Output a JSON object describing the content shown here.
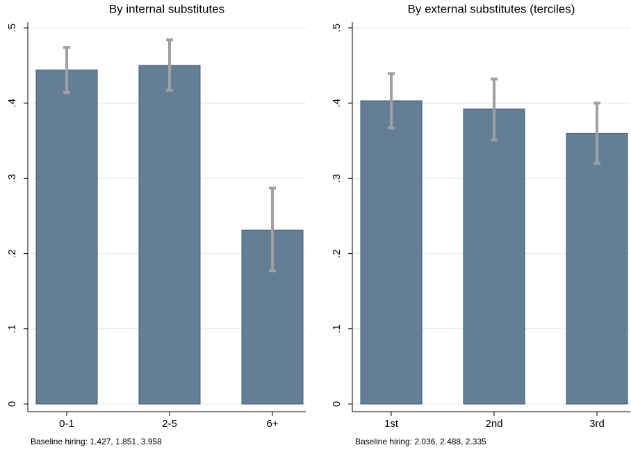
{
  "chart_data": [
    {
      "type": "bar",
      "title": "By internal substitutes",
      "categories": [
        "0-1",
        "2-5",
        "6+"
      ],
      "values": [
        0.444,
        0.45,
        0.231
      ],
      "ci_low": [
        0.414,
        0.417,
        0.177
      ],
      "ci_high": [
        0.474,
        0.484,
        0.287
      ],
      "color": "#647f95",
      "error_color": "#a0a0a0",
      "ylim": [
        0,
        0.5
      ],
      "yticks": [
        0,
        {
          "value": 0.1,
          "label": ".1"
        },
        {
          "value": 0.2,
          "label": ".2"
        },
        {
          "value": 0.3,
          "label": ".3"
        },
        {
          "value": 0.4,
          "label": ".4"
        },
        {
          "value": 0.5,
          "label": ".5"
        }
      ],
      "grid": true,
      "note": "Baseline hiring: 1.427, 1.851, 3.958"
    },
    {
      "type": "bar",
      "title": "By external substitutes (terciles)",
      "categories": [
        "1st",
        "2nd",
        "3rd"
      ],
      "values": [
        0.403,
        0.392,
        0.36
      ],
      "ci_low": [
        0.367,
        0.351,
        0.32
      ],
      "ci_high": [
        0.439,
        0.432,
        0.4
      ],
      "color": "#647f95",
      "error_color": "#a0a0a0",
      "ylim": [
        0,
        0.5
      ],
      "yticks": [
        0,
        {
          "value": 0.1,
          "label": ".1"
        },
        {
          "value": 0.2,
          "label": ".2"
        },
        {
          "value": 0.3,
          "label": ".3"
        },
        {
          "value": 0.4,
          "label": ".4"
        },
        {
          "value": 0.5,
          "label": ".5"
        }
      ],
      "grid": true,
      "note": "Baseline hiring: 2.036, 2.488, 2.335"
    }
  ]
}
